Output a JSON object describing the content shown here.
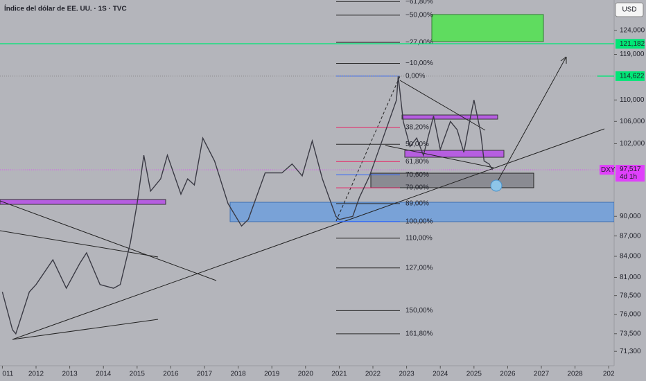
{
  "chart_data": {
    "type": "line",
    "title": "Índice del dólar de EE. UU. · 1S · TVC",
    "currency": "USD",
    "log_scale": true,
    "color": "#3a3a44",
    "x": [
      2011.0,
      2011.3,
      2011.4,
      2011.8,
      2012.0,
      2012.5,
      2012.9,
      2013.3,
      2013.5,
      2013.9,
      2014.3,
      2014.5,
      2014.8,
      2015.0,
      2015.2,
      2015.4,
      2015.7,
      2015.9,
      2016.3,
      2016.5,
      2016.7,
      2016.95,
      2017.3,
      2017.7,
      2018.1,
      2018.3,
      2018.8,
      2019.3,
      2019.6,
      2019.9,
      2020.2,
      2020.5,
      2020.9,
      2021.0,
      2021.4,
      2021.6,
      2021.9,
      2022.3,
      2022.7,
      2022.75,
      2022.9,
      2023.1,
      2023.3,
      2023.5,
      2023.8,
      2024.0,
      2024.3,
      2024.5,
      2024.7,
      2024.9,
      2025.0,
      2025.2,
      2025.3,
      2025.45,
      2025.55
    ],
    "values": [
      79,
      74,
      73.5,
      79,
      80,
      83.5,
      79.5,
      83,
      84.5,
      80,
      79.5,
      80,
      86,
      92,
      100,
      94,
      96,
      100,
      93.5,
      96,
      95,
      103,
      99,
      92,
      88.5,
      89.5,
      97,
      97,
      98.5,
      96.5,
      102.5,
      96,
      90,
      89.5,
      90,
      93,
      96.5,
      103,
      110,
      114.6,
      106,
      101.5,
      103,
      100,
      107,
      101,
      106,
      104.5,
      100.5,
      107,
      110,
      104,
      99,
      98.5,
      97.5
    ],
    "xlim": [
      2010.93,
      2029.16
    ],
    "ylim": [
      70.05,
      130.7
    ],
    "xticks": [
      {
        "value": 2011,
        "label": "011"
      },
      2012,
      2013,
      2014,
      2015,
      2016,
      2017,
      2018,
      2019,
      2020,
      2021,
      2022,
      2023,
      2024,
      2025,
      2026,
      2027,
      2028,
      {
        "value": 2029,
        "label": "202"
      }
    ],
    "yticks": [
      {
        "value": 124,
        "label": "124,000"
      },
      {
        "value": 119,
        "label": "119,000"
      },
      {
        "value": 110,
        "label": "110,000"
      },
      {
        "value": 106,
        "label": "106,000"
      },
      {
        "value": 102,
        "label": "102,000"
      },
      {
        "value": 90,
        "label": "90,000"
      },
      {
        "value": 87,
        "label": "87,000"
      },
      {
        "value": 84,
        "label": "84,000"
      },
      {
        "value": 81,
        "label": "81,000"
      },
      {
        "value": 78.5,
        "label": "78,500"
      },
      {
        "value": 76,
        "label": "76,000"
      },
      {
        "value": 73.5,
        "label": "73,500"
      },
      {
        "value": 71.3,
        "label": "71,300"
      }
    ],
    "fib_levels": [
      {
        "label": "−61,80%",
        "price": 130.33,
        "color": "#2a2a2a"
      },
      {
        "label": "−50,00%",
        "price": 127.33,
        "color": "#2a2a2a"
      },
      {
        "label": "−27,00%",
        "price": 121.49,
        "color": "#2a2a2a"
      },
      {
        "label": "−10,00%",
        "price": 117.16,
        "color": "#2a2a2a"
      },
      {
        "label": "0,00%",
        "price": 114.62,
        "color": "#2962ff"
      },
      {
        "label": "38,20%",
        "price": 104.91,
        "color": "#e91e63"
      },
      {
        "label": "50,00%",
        "price": 101.91,
        "color": "#2a2a2a"
      },
      {
        "label": "61,80%",
        "price": 98.91,
        "color": "#e91e63"
      },
      {
        "label": "70,60%",
        "price": 96.67,
        "color": "#2962ff"
      },
      {
        "label": "79,00%",
        "price": 94.54,
        "color": "#e91e63"
      },
      {
        "label": "89,00%",
        "price": 92.0,
        "color": "#2a2a2a"
      },
      {
        "label": "100,00%",
        "price": 89.2,
        "color": "#2962ff"
      },
      {
        "label": "110,00%",
        "price": 86.66,
        "color": "#2a2a2a"
      },
      {
        "label": "127,00%",
        "price": 82.34,
        "color": "#2a2a2a"
      },
      {
        "label": "150,00%",
        "price": 76.49,
        "color": "#2a2a2a"
      },
      {
        "label": "161,80%",
        "price": 73.49,
        "color": "#2a2a2a"
      }
    ],
    "price_tags": [
      {
        "label": "121,182",
        "price": 121.182,
        "color": "#00e676"
      },
      {
        "label": "114,622",
        "price": 114.622,
        "color": "#00e676"
      }
    ],
    "last_price": {
      "symbol": "DXY",
      "label": "97,517",
      "price": 97.517,
      "countdown": "4d 1h",
      "color": "#e040fb"
    }
  }
}
